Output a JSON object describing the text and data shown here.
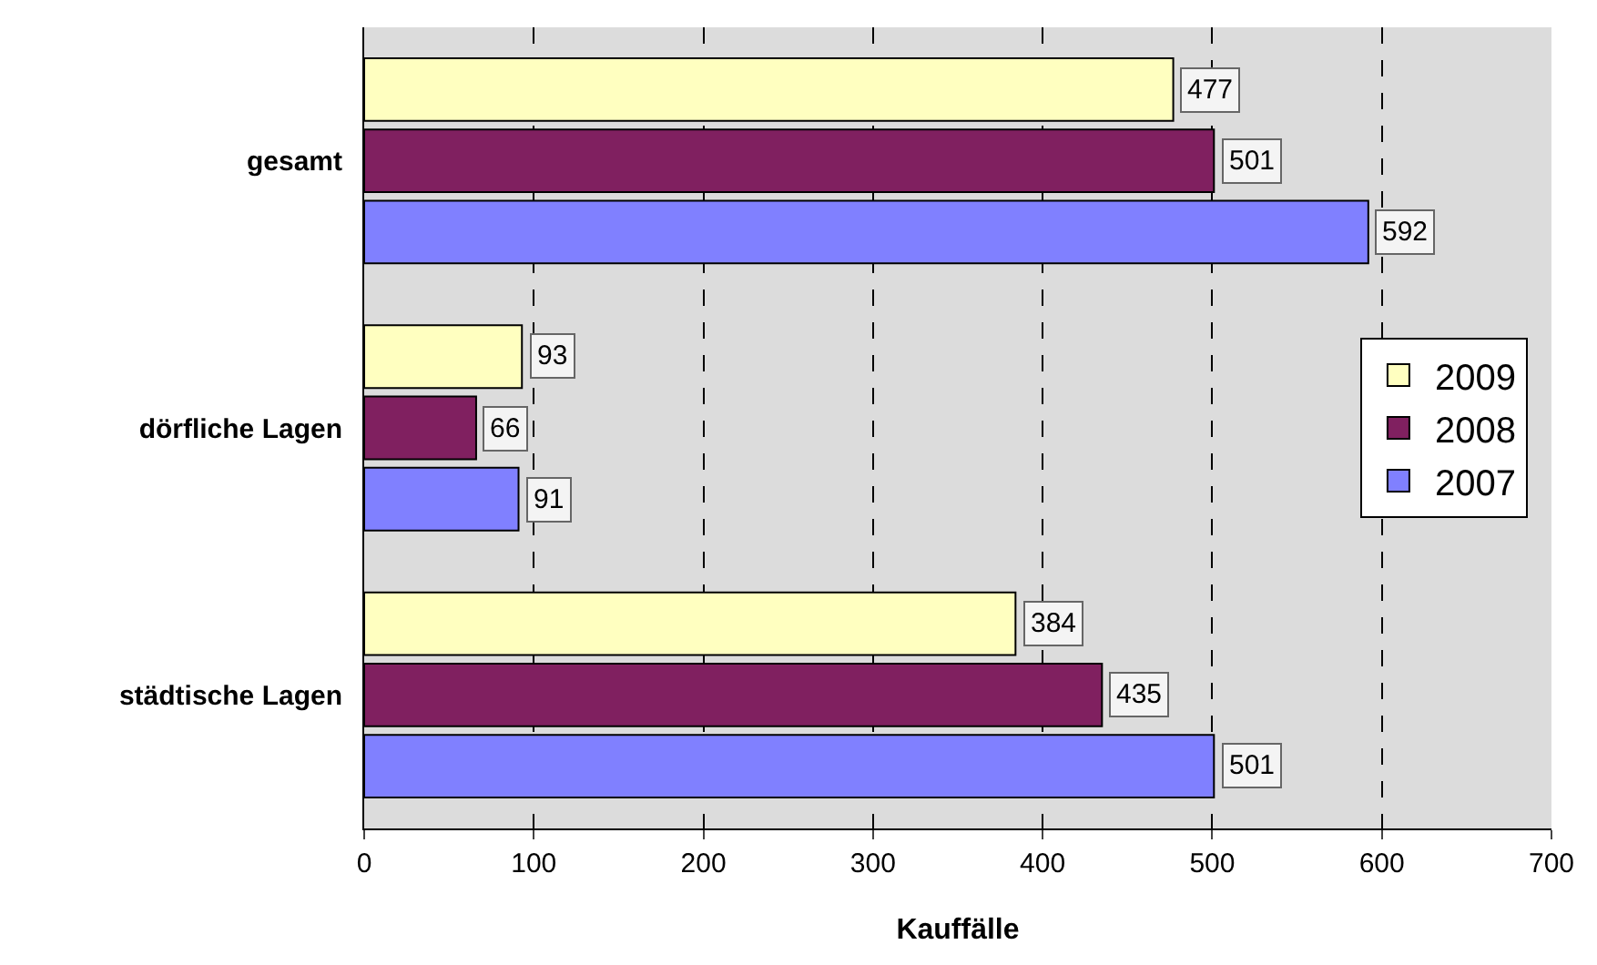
{
  "chart_data": {
    "type": "bar",
    "orientation": "horizontal",
    "xlabel": "Kauffälle",
    "categories": [
      "gesamt",
      "dörfliche Lagen",
      "städtische Lagen"
    ],
    "series": [
      {
        "name": "2009",
        "color": "#ffffc0",
        "values": [
          477,
          93,
          384
        ]
      },
      {
        "name": "2008",
        "color": "#802060",
        "values": [
          501,
          66,
          435
        ]
      },
      {
        "name": "2007",
        "color": "#8080ff",
        "values": [
          592,
          91,
          501
        ]
      }
    ],
    "xlim": [
      0,
      700
    ],
    "xticks": [
      0,
      100,
      200,
      300,
      400,
      500,
      600,
      700
    ],
    "grid": "x",
    "legend": "right",
    "data_labels": true
  }
}
